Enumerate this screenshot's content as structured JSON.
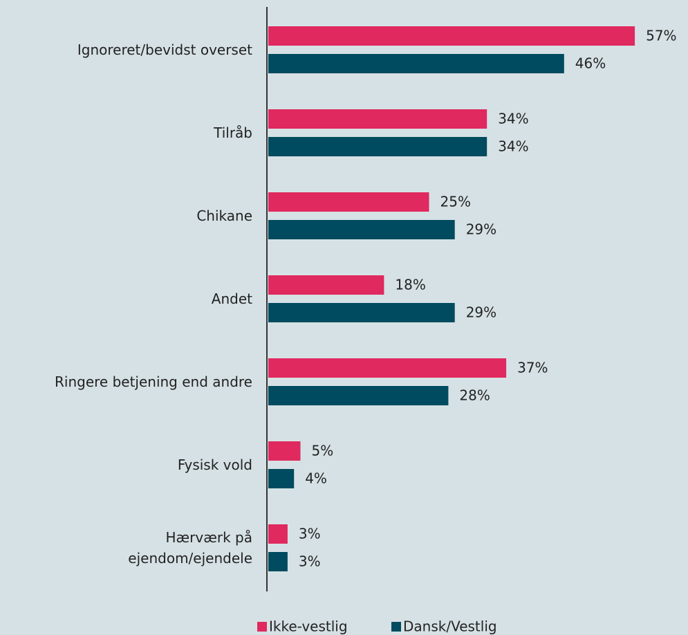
{
  "chart_data": {
    "type": "barh",
    "categories": [
      "Ignoreret/bevidst overset",
      "Tilråb",
      "Chikane",
      "Andet",
      "Ringere betjening end andre",
      "Fysisk vold",
      "Hærværk på\nejendom/ejendele"
    ],
    "series": [
      {
        "name": "Ikke-vestlig",
        "color": "#e0295f",
        "values": [
          57,
          34,
          25,
          18,
          37,
          5,
          3
        ],
        "value_labels": [
          "57%",
          "34%",
          "25%",
          "18%",
          "37%",
          "5%",
          "3%"
        ]
      },
      {
        "name": "Dansk/Vestlig",
        "color": "#004b5f",
        "values": [
          46,
          34,
          29,
          29,
          28,
          4,
          3
        ],
        "value_labels": [
          "46%",
          "34%",
          "29%",
          "29%",
          "28%",
          "4%",
          "3%"
        ]
      }
    ],
    "legend": "bottom"
  }
}
